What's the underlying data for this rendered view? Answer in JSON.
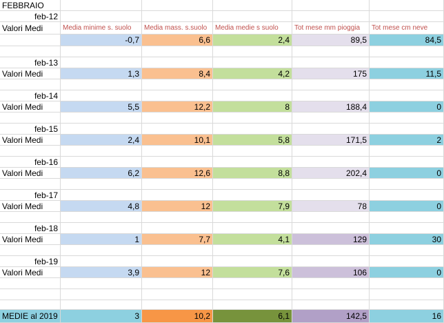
{
  "sheet_title": "FEBBRAIO",
  "label_valori": "Valori Medi",
  "headers": [
    "Media minime s. suolo",
    "Media mass. s.suolo",
    "Media medie s suolo",
    "Tot  mese mm pioggia",
    "Tot mese cm neve"
  ],
  "years": [
    {
      "label": "feb-12",
      "values": [
        "-0,7",
        "6,6",
        "2,4",
        "89,5",
        "84,5"
      ]
    },
    {
      "label": "feb-13",
      "values": [
        "1,3",
        "8,4",
        "4,2",
        "175",
        "11,5"
      ]
    },
    {
      "label": "feb-14",
      "values": [
        "5,5",
        "12,2",
        "8",
        "188,4",
        "0"
      ]
    },
    {
      "label": "feb-15",
      "values": [
        "2,4",
        "10,1",
        "5,8",
        "171,5",
        "2"
      ]
    },
    {
      "label": "feb-16",
      "values": [
        "6,2",
        "12,6",
        "8,8",
        "202,4",
        "0"
      ]
    },
    {
      "label": "feb-17",
      "values": [
        "4,8",
        "12",
        "7,9",
        "78",
        "0"
      ]
    },
    {
      "label": "feb-18",
      "values": [
        "1",
        "7,7",
        "4,1",
        "129",
        "30"
      ]
    },
    {
      "label": "feb-19",
      "values": [
        "3,9",
        "12",
        "7,6",
        "106",
        "0"
      ]
    }
  ],
  "totals": {
    "label": "MEDIE al 2019",
    "values": [
      "3",
      "10,2",
      "6,1",
      "142,5",
      "16"
    ]
  }
}
